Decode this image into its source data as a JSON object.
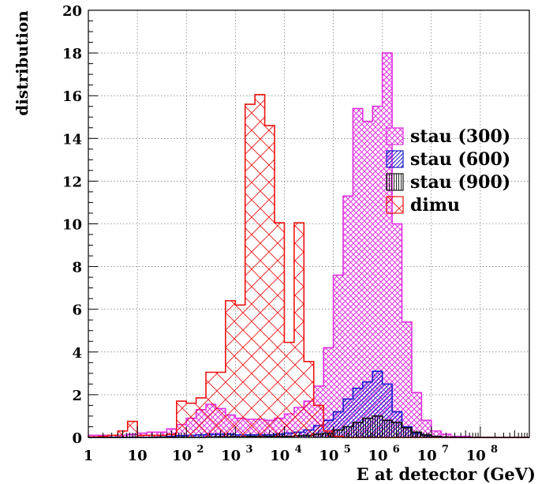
{
  "chart_data": {
    "type": "histogram",
    "title": "",
    "xlabel": "E at detector (GeV)",
    "ylabel": "distribution",
    "x_scale": "log10",
    "xlim_gev": [
      1,
      1000000000
    ],
    "ylim": [
      0,
      20
    ],
    "grid": true,
    "legend_position": "right",
    "x_ticks": [
      {
        "value": 1,
        "base": "1",
        "exp": ""
      },
      {
        "value": 10,
        "base": "10",
        "exp": ""
      },
      {
        "value": 100,
        "base": "10",
        "exp": "2"
      },
      {
        "value": 1000,
        "base": "10",
        "exp": "3"
      },
      {
        "value": 10000,
        "base": "10",
        "exp": "4"
      },
      {
        "value": 100000,
        "base": "10",
        "exp": "5"
      },
      {
        "value": 1000000,
        "base": "10",
        "exp": "6"
      },
      {
        "value": 10000000,
        "base": "10",
        "exp": "7"
      },
      {
        "value": 100000000,
        "base": "10",
        "exp": "8"
      }
    ],
    "y_ticks": [
      0,
      2,
      4,
      6,
      8,
      10,
      12,
      14,
      16,
      18,
      20
    ],
    "bin_width_log10": 0.2,
    "bins_start_gev": 1,
    "series": [
      {
        "name": "stau (300)",
        "color": "#e030e0",
        "pattern": "cross-hatch",
        "values": [
          0.1,
          0.1,
          0.1,
          0.1,
          0.15,
          0.2,
          0.25,
          0.25,
          0.4,
          0.6,
          0.9,
          1.3,
          1.55,
          1.35,
          1.05,
          0.9,
          0.85,
          0.85,
          0.8,
          0.9,
          1.1,
          1.4,
          1.7,
          2.4,
          4.2,
          7.6,
          11.3,
          15.4,
          14.8,
          15.5,
          18.0,
          10.0,
          5.4,
          2.1,
          0.8,
          0.3,
          0.15,
          0.05,
          0.05,
          0.0,
          0.0,
          0.0,
          0.0,
          0.0,
          0.0
        ]
      },
      {
        "name": "stau (600)",
        "color": "#1a1acc",
        "pattern": "diagonal",
        "values": [
          0,
          0,
          0,
          0,
          0,
          0,
          0,
          0.02,
          0.05,
          0.08,
          0.1,
          0.12,
          0.15,
          0.15,
          0.15,
          0.12,
          0.12,
          0.12,
          0.12,
          0.15,
          0.2,
          0.25,
          0.35,
          0.55,
          0.8,
          1.2,
          1.8,
          2.3,
          2.6,
          3.1,
          2.5,
          1.2,
          0.5,
          0.2,
          0.1,
          0.05,
          0,
          0,
          0,
          0,
          0,
          0,
          0,
          0,
          0
        ]
      },
      {
        "name": "stau (900)",
        "color": "#111111",
        "pattern": "vertical",
        "values": [
          0,
          0,
          0,
          0,
          0,
          0,
          0,
          0,
          0,
          0,
          0,
          0,
          0.02,
          0.03,
          0.03,
          0.03,
          0.05,
          0.05,
          0.05,
          0.05,
          0.05,
          0.08,
          0.1,
          0.15,
          0.2,
          0.35,
          0.5,
          0.7,
          0.9,
          1.0,
          0.8,
          0.7,
          0.45,
          0.25,
          0.12,
          0.05,
          0.02,
          0,
          0,
          0,
          0,
          0,
          0,
          0,
          0
        ]
      },
      {
        "name": "dimu",
        "color": "#ee1111",
        "pattern": "crosses",
        "values": [
          0.02,
          0.05,
          0.1,
          0.3,
          0.75,
          0.1,
          0.1,
          0.1,
          0.15,
          1.7,
          1.6,
          1.85,
          3.05,
          3.05,
          6.4,
          6.2,
          15.6,
          16.05,
          14.6,
          10.05,
          4.45,
          10.05,
          3.55,
          1.5,
          0.3,
          0.05,
          0.0,
          0.0,
          0.0,
          0.0,
          0.0,
          0.0,
          0.0,
          0.0,
          0.0,
          0.0,
          0.0,
          0.0,
          0.0,
          0.0,
          0.0,
          0.0,
          0.0,
          0.0,
          0.0
        ]
      }
    ]
  }
}
